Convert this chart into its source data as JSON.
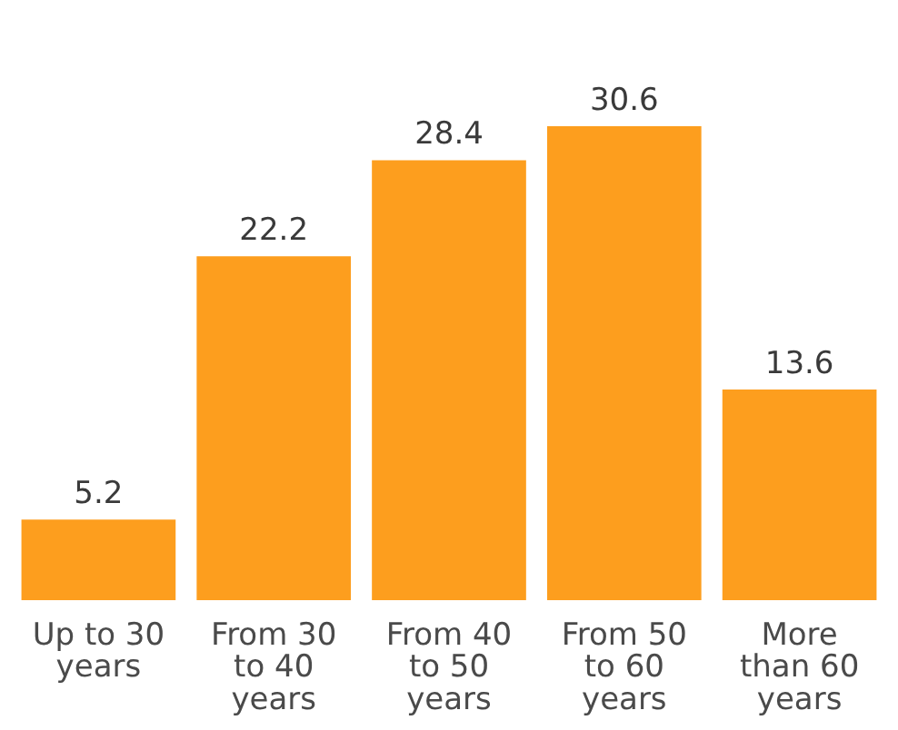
{
  "chart_data": {
    "type": "bar",
    "categories": [
      "Up to 30 years",
      "From 30 to 40 years",
      "From 40 to 50 years",
      "From 50 to 60 years",
      "More than 60 years"
    ],
    "values": [
      5.2,
      22.2,
      28.4,
      30.6,
      13.6
    ],
    "color": "#fd9e1e",
    "data_labels": true
  }
}
